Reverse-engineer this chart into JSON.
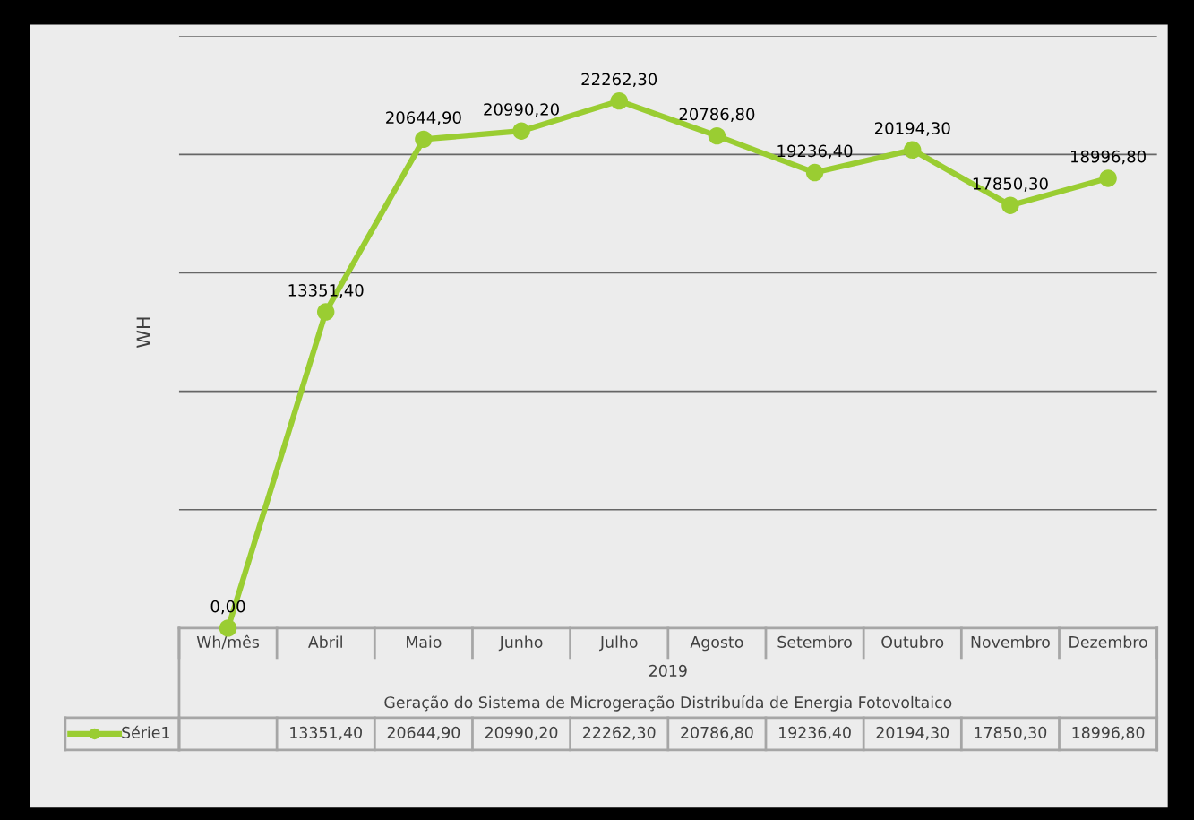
{
  "chart_data": {
    "type": "line",
    "categories": [
      "Wh/mês",
      "Abril",
      "Maio",
      "Junho",
      "Julho",
      "Agosto",
      "Setembro",
      "Outubro",
      "Novembro",
      "Dezembro"
    ],
    "series": [
      {
        "name": "Série1",
        "color": "#9acd32",
        "values": [
          0,
          13351.4,
          20644.9,
          20990.2,
          22262.3,
          20786.8,
          19236.4,
          20194.3,
          17850.3,
          18996.8
        ],
        "value_labels": [
          "0,00",
          "13351,40",
          "20644,90",
          "20990,20",
          "22262,30",
          "20786,80",
          "19236,40",
          "20194,30",
          "17850,30",
          "18996,80"
        ]
      }
    ],
    "ylabel": "WH",
    "xlabel": "Geração do Sistema de Microgeração Distribuída de Energia Fotovoltaico",
    "annotations": [
      "2019"
    ],
    "tick_labels": "x",
    "grid": "y",
    "marker": "circle",
    "line_style": "solid",
    "legend": "bottom"
  }
}
